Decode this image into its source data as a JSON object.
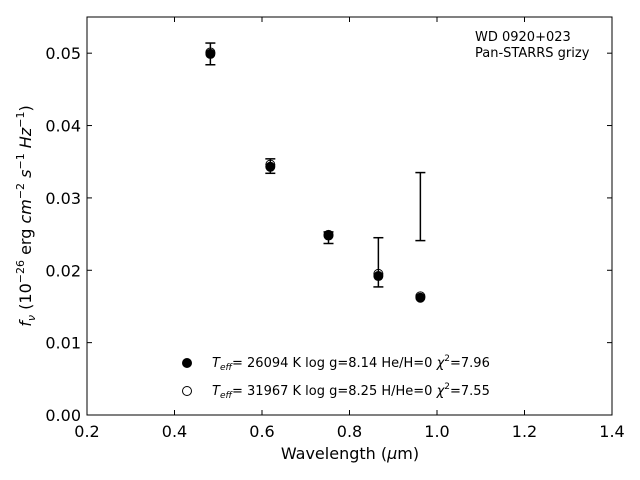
{
  "chart_data": {
    "type": "scatter",
    "annotation": [
      "WD 0920+023",
      "Pan-STARRS grizy"
    ],
    "xlabel": "Wavelength (μm)",
    "ylabel": "f_ν (10^-26 erg cm^-2 s^-1 Hz^-1)",
    "xlim": [
      0.2,
      1.4
    ],
    "ylim": [
      0.0,
      0.055
    ],
    "x_ticks": [
      0.2,
      0.4,
      0.6,
      0.8,
      1.0,
      1.2,
      1.4
    ],
    "y_ticks": [
      0.0,
      0.01,
      0.02,
      0.03,
      0.04,
      0.05
    ],
    "x_tick_labels": [
      "0.2",
      "0.4",
      "0.6",
      "0.8",
      "1.0",
      "1.2",
      "1.4"
    ],
    "y_tick_labels": [
      "0.00",
      "0.01",
      "0.02",
      "0.03",
      "0.04",
      "0.05"
    ],
    "grid": false,
    "legend_location": "lower center",
    "observed": {
      "x": [
        0.482,
        0.619,
        0.752,
        0.866,
        0.962
      ],
      "y": [
        0.0499,
        0.0344,
        0.0245,
        0.0211,
        0.0288
      ],
      "err": [
        0.0015,
        0.001,
        0.0008,
        0.0034,
        0.0047
      ]
    },
    "series": [
      {
        "marker": "filled",
        "x": [
          0.482,
          0.619,
          0.752,
          0.866,
          0.962
        ],
        "y": [
          0.0499,
          0.0343,
          0.0248,
          0.0192,
          0.0162
        ],
        "legend_parts": [
          "= 26094 K  log g=8.14  He/H=0  ",
          "=7.96"
        ]
      },
      {
        "marker": "open",
        "x": [
          0.482,
          0.619,
          0.752,
          0.866,
          0.962
        ],
        "y": [
          0.0501,
          0.0346,
          0.0249,
          0.0195,
          0.0164
        ],
        "legend_parts": [
          "= 31967 K  log g=8.25  H/He=0  ",
          "=7.55"
        ]
      }
    ]
  }
}
